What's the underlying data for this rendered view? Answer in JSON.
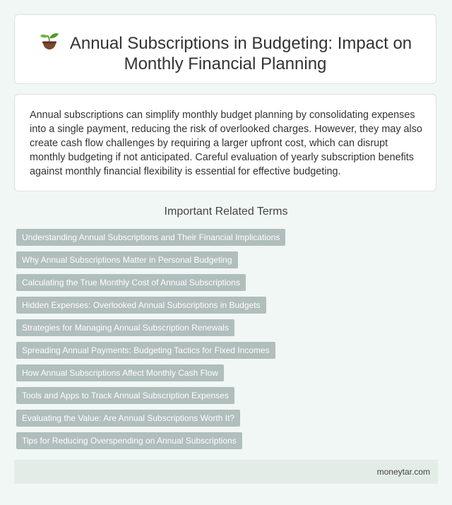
{
  "header": {
    "icon": "seedling-icon",
    "title": "Annual Subscriptions in Budgeting: Impact on Monthly Financial Planning"
  },
  "summary": {
    "text": "Annual subscriptions can simplify monthly budget planning by consolidating expenses into a single payment, reducing the risk of overlooked charges. However, they may also create cash flow challenges by requiring a larger upfront cost, which can disrupt monthly budgeting if not anticipated. Careful evaluation of yearly subscription benefits against monthly financial flexibility is essential for effective budgeting."
  },
  "related": {
    "heading": "Important Related Terms",
    "terms": [
      "Understanding Annual Subscriptions and Their Financial Implications",
      "Why Annual Subscriptions Matter in Personal Budgeting",
      "Calculating the True Monthly Cost of Annual Subscriptions",
      "Hidden Expenses: Overlooked Annual Subscriptions in Budgets",
      "Strategies for Managing Annual Subscription Renewals",
      "Spreading Annual Payments: Budgeting Tactics for Fixed Incomes",
      "How Annual Subscriptions Affect Monthly Cash Flow",
      "Tools and Apps to Track Annual Subscription Expenses",
      "Evaluating the Value: Are Annual Subscriptions Worth It?",
      "Tips for Reducing Overspending on Annual Subscriptions"
    ]
  },
  "footer": {
    "site": "moneytar.com"
  },
  "colors": {
    "background": "#f1f7f4",
    "tag_background": "#b0bebc",
    "footer_background": "#e4ece8"
  }
}
